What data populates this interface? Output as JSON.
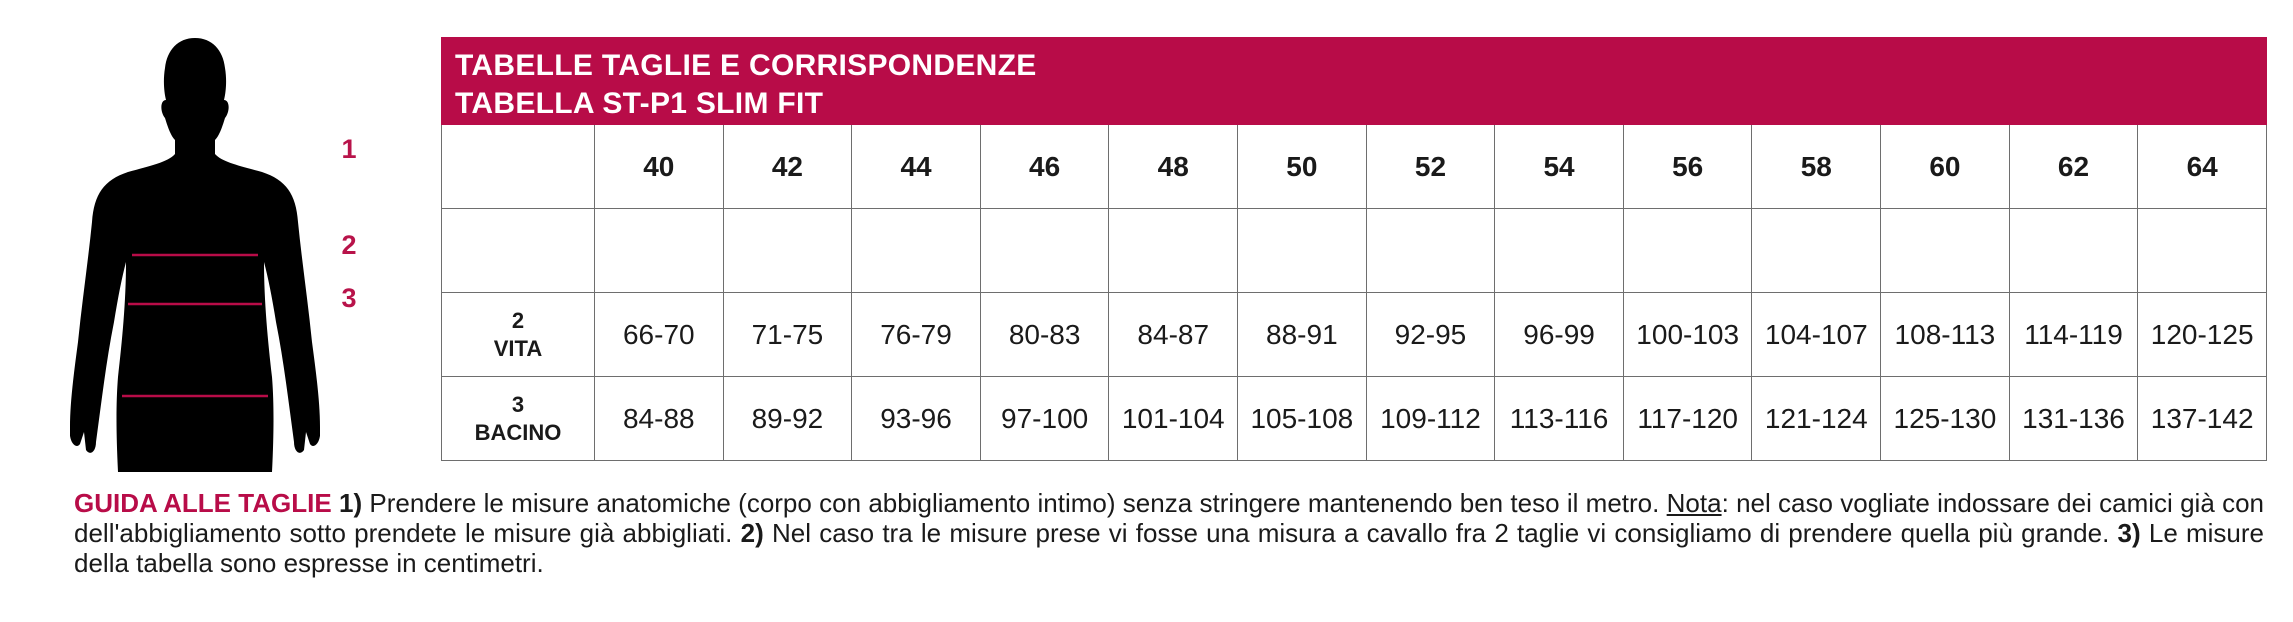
{
  "colors": {
    "accent": "#b80c48",
    "silhouette": "#000000",
    "grid": "#6e6e6e"
  },
  "figure": {
    "markers": [
      "1",
      "2",
      "3"
    ]
  },
  "table": {
    "title_line1": "TABELLE TAGLIE E CORRISPONDENZE",
    "title_line2": "TABELLA ST-P1 SLIM FIT",
    "sizes": [
      "40",
      "42",
      "44",
      "46",
      "48",
      "50",
      "52",
      "54",
      "56",
      "58",
      "60",
      "62",
      "64"
    ],
    "rows": [
      {
        "num": "",
        "label": "",
        "values": [
          "",
          "",
          "",
          "",
          "",
          "",
          "",
          "",
          "",
          "",
          "",
          "",
          ""
        ]
      },
      {
        "num": "2",
        "label": "VITA",
        "values": [
          "66-70",
          "71-75",
          "76-79",
          "80-83",
          "84-87",
          "88-91",
          "92-95",
          "96-99",
          "100-103",
          "104-107",
          "108-113",
          "114-119",
          "120-125"
        ]
      },
      {
        "num": "3",
        "label": "BACINO",
        "values": [
          "84-88",
          "89-92",
          "93-96",
          "97-100",
          "101-104",
          "105-108",
          "109-112",
          "113-116",
          "117-120",
          "121-124",
          "125-130",
          "131-136",
          "137-142"
        ]
      }
    ]
  },
  "guide": {
    "title": "GUIDA ALLE TAGLIE",
    "n1": "1)",
    "t1a": " Prendere le misure anatomiche (corpo con abbigliamento intimo) senza stringere mantenendo ben teso il metro. ",
    "nota": "Nota",
    "t1b": ": nel caso vogliate indossare dei camici già con dell'abbigliamento sotto prendete le misure già abbigliati. ",
    "n2": "2)",
    "t2": " Nel caso tra le misure prese vi fosse una misura a cavallo fra 2 taglie vi consigliamo di prendere quella più grande. ",
    "n3": "3)",
    "t3": " Le misure della tabella sono espresse in centimetri."
  }
}
